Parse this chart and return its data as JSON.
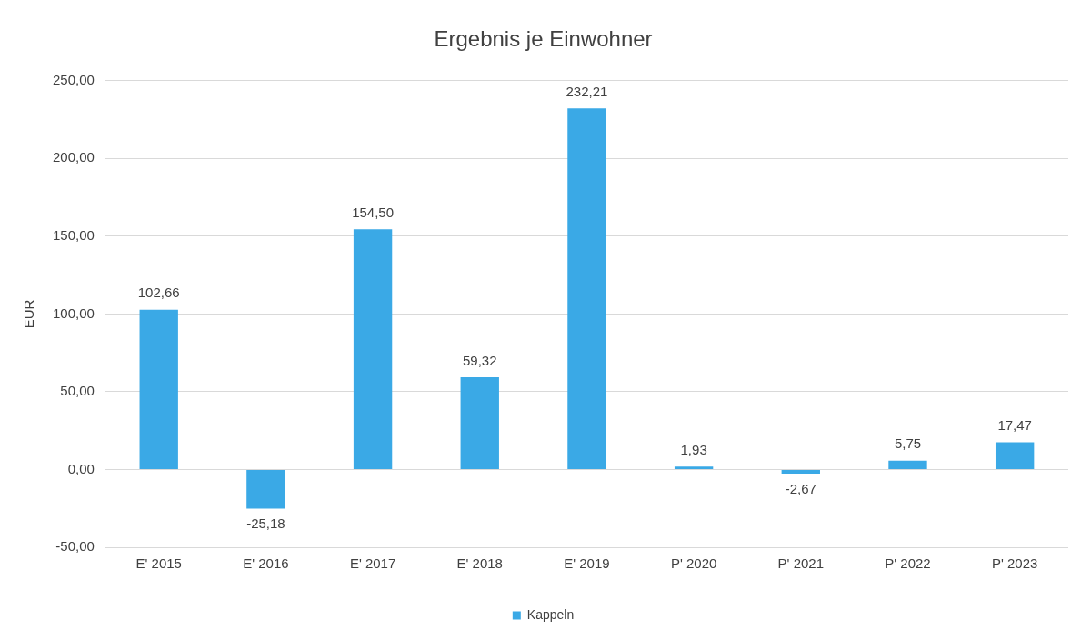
{
  "chart_data": {
    "type": "bar",
    "title": "Ergebnis je Einwohner",
    "ylabel": "EUR",
    "categories": [
      "E' 2015",
      "E' 2016",
      "E' 2017",
      "E' 2018",
      "E' 2019",
      "P' 2020",
      "P' 2021",
      "P' 2022",
      "P' 2023"
    ],
    "series": [
      {
        "name": "Kappeln",
        "color": "#3aa9e6",
        "values": [
          102.66,
          -25.18,
          154.5,
          59.32,
          232.21,
          1.93,
          -2.67,
          5.75,
          17.47
        ],
        "value_labels": [
          "102,66",
          "-25,18",
          "154,50",
          "59,32",
          "232,21",
          "1,93",
          "-2,67",
          "5,75",
          "17,47"
        ]
      }
    ],
    "ylim": [
      -50,
      250
    ],
    "yticks": [
      {
        "value": -50,
        "label": "-50,00"
      },
      {
        "value": 0,
        "label": "0,00"
      },
      {
        "value": 50,
        "label": "50,00"
      },
      {
        "value": 100,
        "label": "100,00"
      },
      {
        "value": 150,
        "label": "150,00"
      },
      {
        "value": 200,
        "label": "200,00"
      },
      {
        "value": 250,
        "label": "250,00"
      }
    ],
    "grid": "y",
    "legend": "bottom"
  }
}
